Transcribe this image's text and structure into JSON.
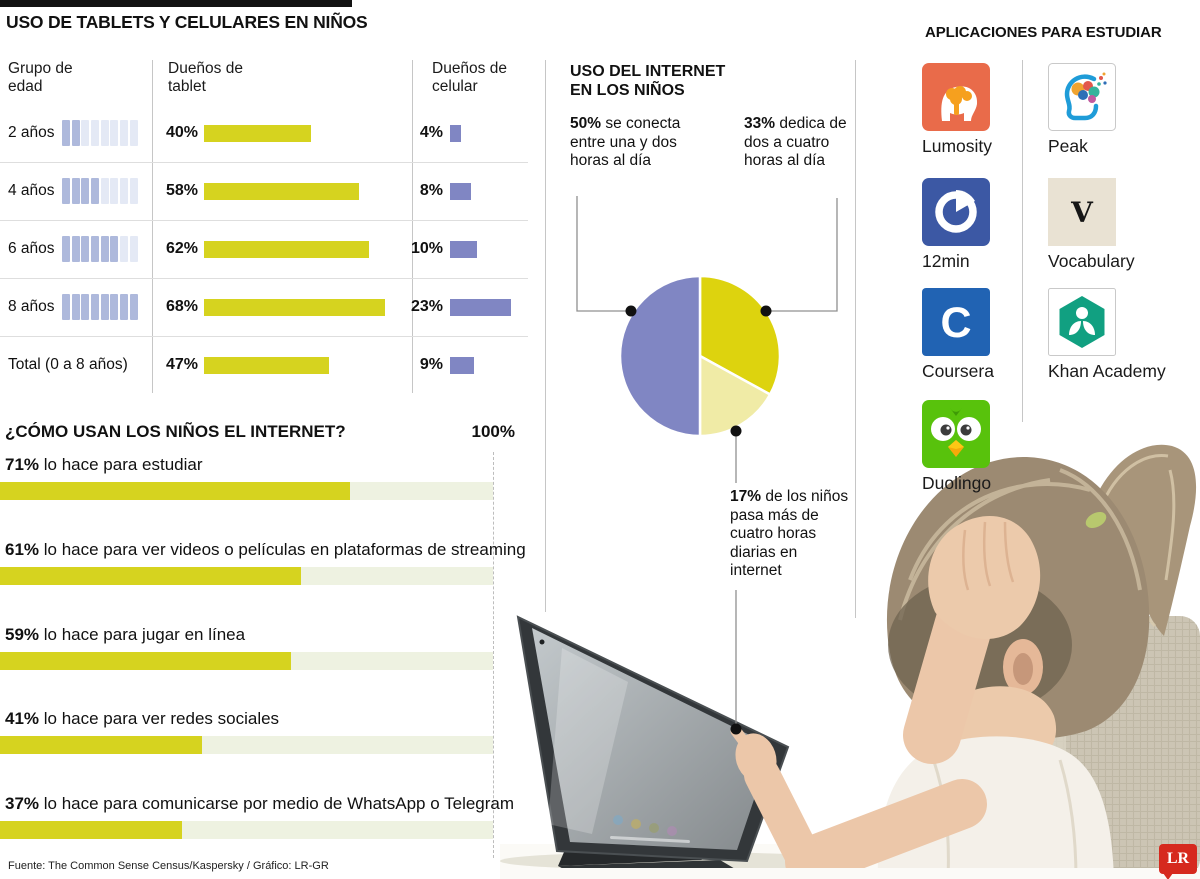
{
  "header": {
    "title": "USO DE TABLETS Y CELULARES EN NIÑOS"
  },
  "ownership_table": {
    "headers": [
      "Grupo de edad",
      "Dueños de tablet",
      "Dueños de celular"
    ],
    "pictogram_total_segments": 8,
    "rows": [
      {
        "label": "2 años",
        "age_filled": 2,
        "tablet": "40%",
        "tablet_value": 40,
        "celular": "4%",
        "celular_value": 4
      },
      {
        "label": "4 años",
        "age_filled": 4,
        "tablet": "58%",
        "tablet_value": 58,
        "celular": "8%",
        "celular_value": 8
      },
      {
        "label": "6 años",
        "age_filled": 6,
        "tablet": "62%",
        "tablet_value": 62,
        "celular": "10%",
        "celular_value": 10
      },
      {
        "label": "8 años",
        "age_filled": 8,
        "tablet": "68%",
        "tablet_value": 68,
        "celular": "23%",
        "celular_value": 23
      },
      {
        "label": "Total (0 a 8 años)",
        "age_filled": 0,
        "tablet": "47%",
        "tablet_value": 47,
        "celular": "9%",
        "celular_value": 9
      }
    ]
  },
  "internet_use": {
    "title_line1": "USO DEL INTERNET",
    "title_line2": "EN LOS NIÑOS",
    "slices": [
      {
        "pct": 33,
        "color": "#ddd30e",
        "label_bold": "33%",
        "label_rest": "dedica de dos a cuatro horas al día"
      },
      {
        "pct": 17,
        "color": "#f0eba6",
        "label_bold": "17%",
        "label_rest": "de los niños pasa más de cuatro horas diarias en internet"
      },
      {
        "pct": 50,
        "color": "#8086c3",
        "label_bold": "50%",
        "label_rest": "se conecta entre una y dos horas al día"
      }
    ]
  },
  "apps": {
    "title": "APLICACIONES PARA ESTUDIAR",
    "items": [
      {
        "name": "Lumosity"
      },
      {
        "name": "Peak"
      },
      {
        "name": "12min"
      },
      {
        "name": "Vocabulary"
      },
      {
        "name": "Coursera"
      },
      {
        "name": "Khan Academy"
      },
      {
        "name": "Duolingo"
      }
    ]
  },
  "usage_chart": {
    "title": "¿CÓMO USAN LOS NIÑOS EL INTERNET?",
    "axis_label": "100%",
    "bars": [
      {
        "pct": "71%",
        "text": "lo hace para estudiar",
        "value": 71
      },
      {
        "pct": "61%",
        "text": "lo hace para ver videos o películas en plataformas de streaming",
        "value": 61
      },
      {
        "pct": "59%",
        "text": "lo hace para jugar en línea",
        "value": 59
      },
      {
        "pct": "41%",
        "text": "lo hace para ver redes sociales",
        "value": 41
      },
      {
        "pct": "37%",
        "text": "lo hace para comunicarse por medio de WhatsApp o Telegram",
        "value": 37
      }
    ]
  },
  "footer": {
    "source": "Fuente: The Common Sense Census/Kaspersky / Gráfico: LR-GR",
    "logo": "LR"
  },
  "colors": {
    "bar_yellow": "#d6d31f",
    "bar_purple": "#8086c3",
    "pie_yellow": "#ddd30e",
    "pie_pale": "#f0eba6",
    "pie_purple": "#8086c3",
    "picto_filled": "#aeb9dc",
    "picto_empty": "#e4e9f5",
    "track_green": "#eef2e1",
    "lr_red": "#d6291e"
  },
  "chart_data": [
    {
      "type": "table",
      "title": "USO DE TABLETS Y CELULARES EN NIÑOS",
      "columns": [
        "Grupo de edad",
        "Dueños de tablet (%)",
        "Dueños de celular (%)"
      ],
      "rows": [
        [
          "2 años",
          40,
          4
        ],
        [
          "4 años",
          58,
          8
        ],
        [
          "6 años",
          62,
          10
        ],
        [
          "8 años",
          68,
          23
        ],
        [
          "Total (0 a 8 años)",
          47,
          9
        ]
      ]
    },
    {
      "type": "pie",
      "title": "USO DEL INTERNET EN LOS NIÑOS",
      "labels": [
        "dedica de dos a cuatro horas al día",
        "pasa más de cuatro horas diarias en internet",
        "se conecta entre una y dos horas al día"
      ],
      "values": [
        33,
        17,
        50
      ],
      "colors": [
        "#ddd30e",
        "#f0eba6",
        "#8086c3"
      ],
      "start_angle_deg_from_top_clockwise": 0
    },
    {
      "type": "bar",
      "title": "¿CÓMO USAN LOS NIÑOS EL INTERNET?",
      "categories": [
        "lo hace para estudiar",
        "lo hace para ver videos o películas en plataformas de streaming",
        "lo hace para jugar en línea",
        "lo hace para ver redes sociales",
        "lo hace para comunicarse por medio de WhatsApp o Telegram"
      ],
      "values": [
        71,
        61,
        59,
        41,
        37
      ],
      "xlim": [
        0,
        100
      ],
      "orientation": "horizontal"
    }
  ]
}
